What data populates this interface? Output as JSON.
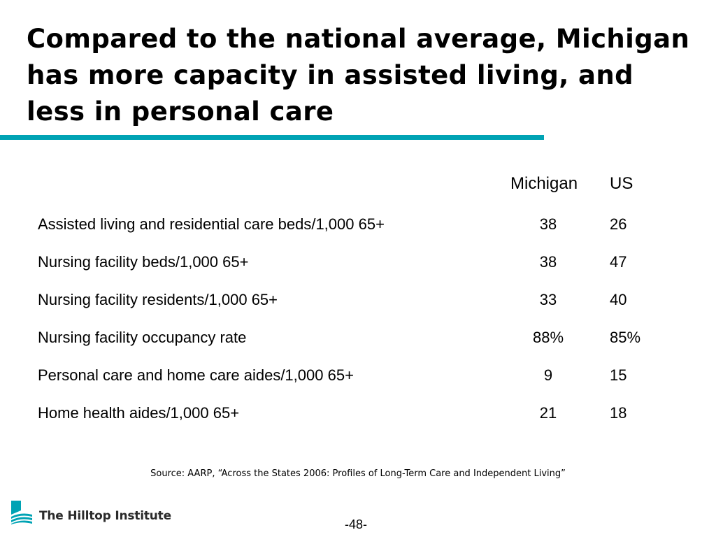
{
  "title": "Compared to the national average, Michigan has more capacity in assisted living, and less in personal care",
  "accent_color": "#00a3b4",
  "table": {
    "headers": {
      "michigan": "Michigan",
      "us": "US"
    },
    "rows": [
      {
        "label": "Assisted living and residential care beds/1,000 65+",
        "michigan": "38",
        "us": "26"
      },
      {
        "label": "Nursing facility beds/1,000 65+",
        "michigan": "38",
        "us": "47"
      },
      {
        "label": "Nursing facility residents/1,000 65+",
        "michigan": "33",
        "us": "40"
      },
      {
        "label": "Nursing facility occupancy rate",
        "michigan": "88%",
        "us": "85%"
      },
      {
        "label": "Personal care and home care aides/1,000 65+",
        "michigan": "9",
        "us": "15"
      },
      {
        "label": "Home health aides/1,000 65+",
        "michigan": "21",
        "us": "18"
      }
    ]
  },
  "source": "Source:  AARP, “Across the States 2006: Profiles of Long-Term Care and Independent Living”",
  "logo": {
    "text": "The Hilltop Institute",
    "icon": "hilltop-logo-icon",
    "color": "#00a3b4"
  },
  "page_number": "-48-"
}
